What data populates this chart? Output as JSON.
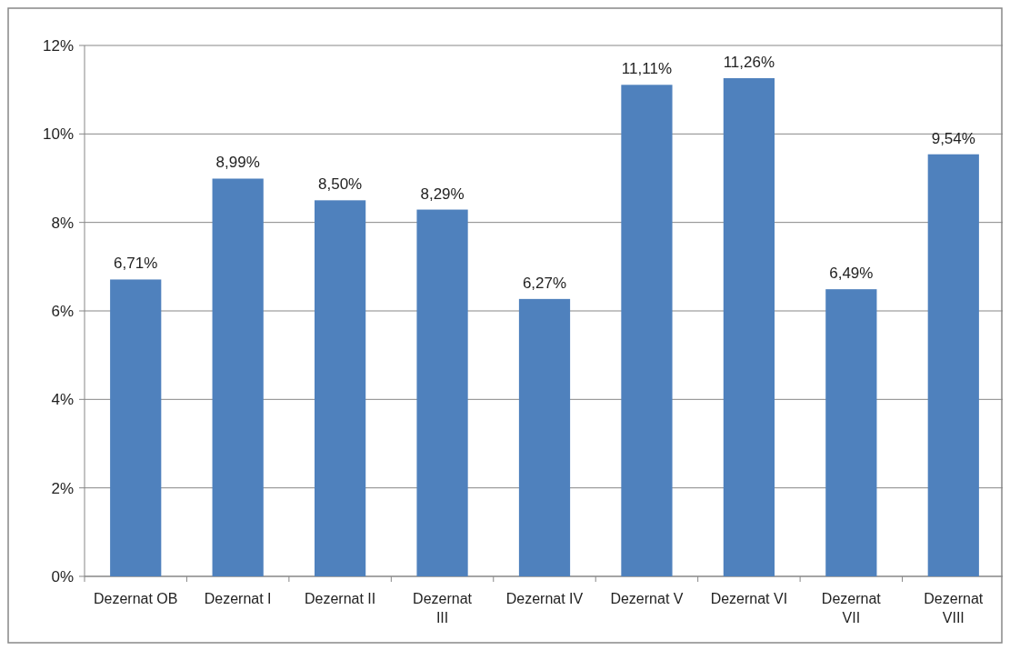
{
  "chart_data": {
    "type": "bar",
    "categories": [
      "Dezernat OB",
      "Dezernat I",
      "Dezernat II",
      "Dezernat III",
      "Dezernat IV",
      "Dezernat V",
      "Dezernat VI",
      "Dezernat VII",
      "Dezernat VIII"
    ],
    "values": [
      6.71,
      8.99,
      8.5,
      8.29,
      6.27,
      11.11,
      11.26,
      6.49,
      9.54
    ],
    "value_labels": [
      "6,71%",
      "8,99%",
      "8,50%",
      "8,29%",
      "6,27%",
      "11,11%",
      "11,26%",
      "6,49%",
      "9,54%"
    ],
    "color": "#4f81bd",
    "ylim": [
      0,
      12
    ],
    "yticks": [
      {
        "value": 0,
        "label": "0%"
      },
      {
        "value": 2,
        "label": "2%"
      },
      {
        "value": 4,
        "label": "4%"
      },
      {
        "value": 6,
        "label": "6%"
      },
      {
        "value": 8,
        "label": "8%"
      },
      {
        "value": 10,
        "label": "10%"
      },
      {
        "value": 12,
        "label": "12%"
      }
    ],
    "grid": "y"
  }
}
